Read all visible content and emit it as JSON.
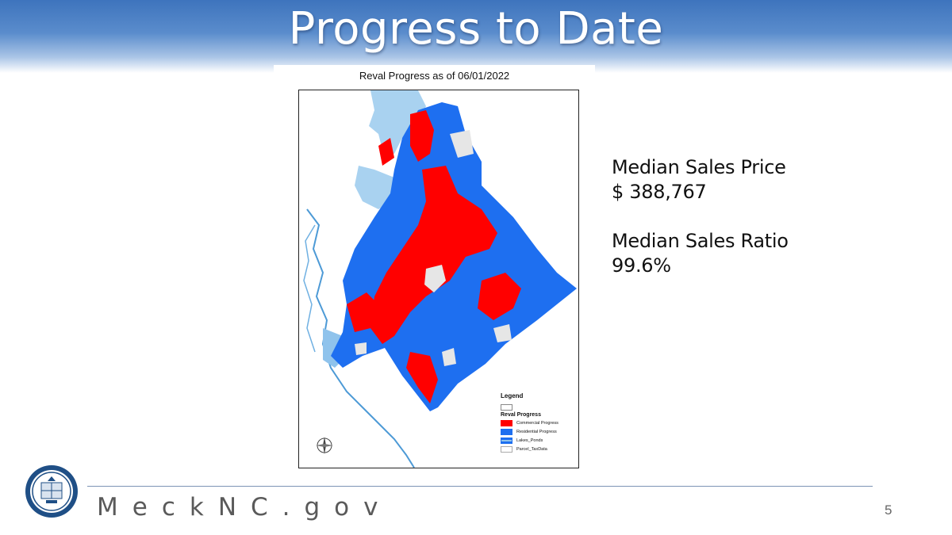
{
  "slide": {
    "title": "Progress to Date",
    "page_number": "5"
  },
  "map": {
    "caption": "Reval Progress as of 06/01/2022",
    "legend": {
      "title": "Legend",
      "group": "Reval Progress",
      "items": [
        {
          "label": "Commercial Progress",
          "color": "#ff0000"
        },
        {
          "label": "Residential Progress",
          "color": "#1e6ff0"
        },
        {
          "label": "Lakes_Ponds",
          "color": "#8fc3ec"
        },
        {
          "label": "Parcel_TaxData",
          "color": "#ffffff"
        }
      ]
    },
    "compass_icon": "compass-rose-icon"
  },
  "stats": {
    "price_label": "Median Sales Price",
    "price_value": "$ 388,767",
    "ratio_label": "Median Sales Ratio",
    "ratio_value": "99.6%"
  },
  "footer": {
    "site": "MeckNC.gov",
    "seal_icon": "county-seal-icon"
  },
  "colors": {
    "header_blue": "#3e74bd",
    "commercial": "#ff0000",
    "residential": "#1e6ff0",
    "water": "#8fc3ec",
    "river_line": "#4d9ad6"
  }
}
